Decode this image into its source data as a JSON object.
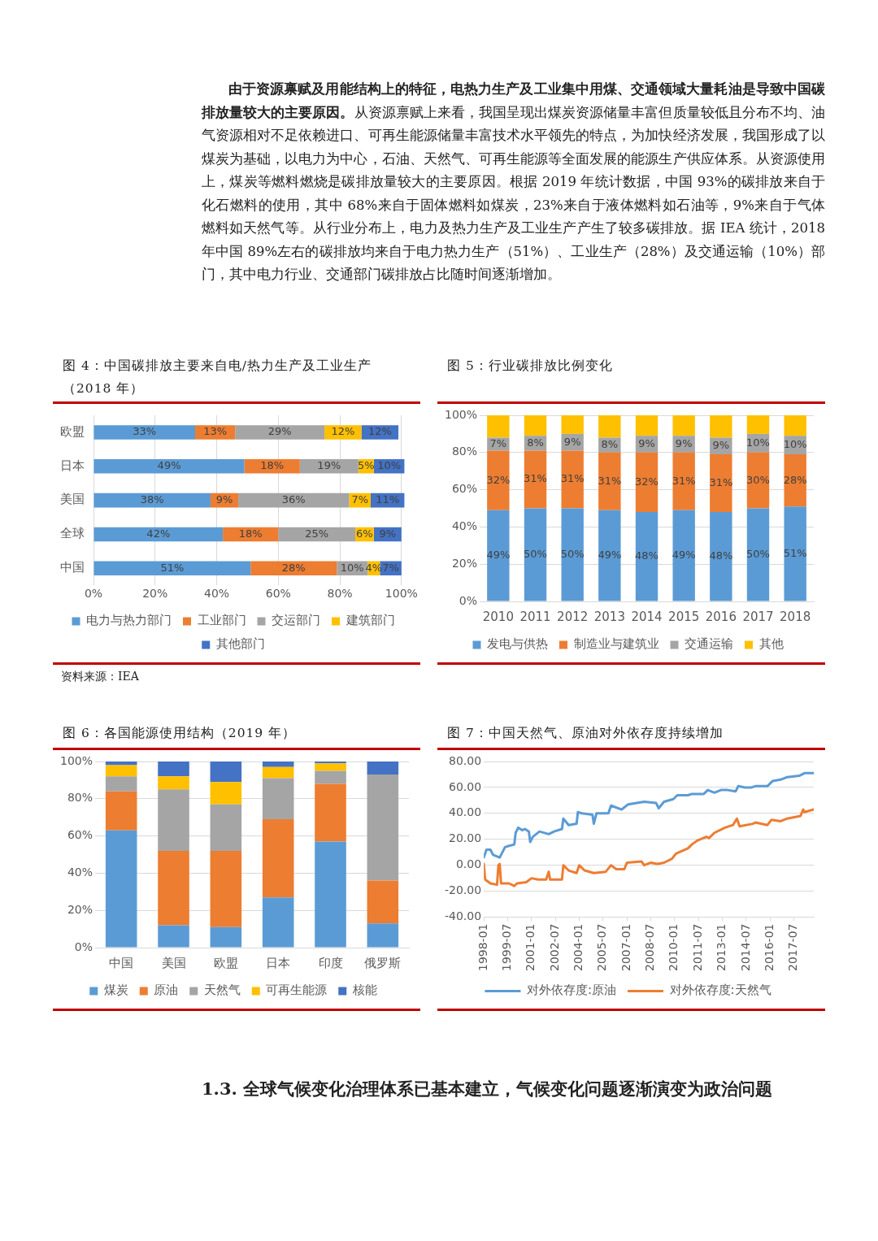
{
  "chart_data": [
    {
      "type": "other",
      "annotations": [
        "由于资源禀赋及用能结构上的特征，电热力生产及工业集中用煤、交通领域大量耗油是导致中国碳排放量较大的主要原因。",
        "从资源禀赋上来看，我国呈现出煤炭资源储量丰富但质量较低且分布不均、油气资源相对不足依赖进口、可再生能源储量丰富技术水平领先的特点，为加快经济发展，我国形成了以煤炭为基础，以电力为中心，石油、天然气、可再生能源等全面发展的能源生产供应体系。从资源使用上，煤炭等燃料燃烧是碳排放量较大的主要原因。根据 2019 年统计数据，中国 93%的碳排放来自于化石燃料的使用，其中 68%来自于固体燃料如煤炭，23%来自于液体燃料如石油等，9%来自于气体燃料如天然气等。从行业分布上，电力及热力生产及工业生产产生了较多碳排放。据 IEA 统计，2018 年中国 89%左右的碳排放均来自于电力热力生产（51%）、工业生产（28%）及交通运输（10%）部门，其中电力行业、交通部门碳排放占比随时间逐渐增加。"
      ]
    },
    {
      "type": "bar",
      "title": "图 4：中国碳排放主要来自电/热力生产及工业生产（2018 年）",
      "orientation": "horizontal",
      "stacked": true,
      "categories": [
        "欧盟",
        "日本",
        "美国",
        "全球",
        "中国"
      ],
      "series": [
        {
          "name": "电力与热力部门",
          "color": "#5b9bd5",
          "values": [
            33,
            49,
            38,
            42,
            51
          ],
          "value_labels": [
            "33%",
            "49%",
            "38%",
            "42%",
            "51%"
          ]
        },
        {
          "name": "工业部门",
          "color": "#ed7d31",
          "values": [
            13,
            18,
            9,
            18,
            28
          ],
          "value_labels": [
            "13%",
            "18%",
            "9%",
            "18%",
            "28%"
          ]
        },
        {
          "name": "交运部门",
          "color": "#a5a5a5",
          "values": [
            29,
            19,
            36,
            25,
            10
          ],
          "value_labels": [
            "29%",
            "19%",
            "36%",
            "25%",
            "10%"
          ]
        },
        {
          "name": "建筑部门",
          "color": "#ffc000",
          "values": [
            12,
            5,
            7,
            6,
            4
          ],
          "value_labels": [
            "12%",
            "5%",
            "7%",
            "6%",
            "4%"
          ]
        },
        {
          "name": "其他部门",
          "color": "#4472c4",
          "values": [
            12,
            10,
            11,
            9,
            7
          ],
          "value_labels": [
            "12%",
            "10%",
            "11%",
            "9%",
            "7%"
          ]
        }
      ],
      "xlim": [
        0,
        101
      ],
      "xticks": [
        {
          "value": 0,
          "label": "0%"
        },
        {
          "value": 20,
          "label": "20%"
        },
        {
          "value": 40,
          "label": "40%"
        },
        {
          "value": 60,
          "label": "60%"
        },
        {
          "value": 80,
          "label": "80%"
        },
        {
          "value": 100,
          "label": "100%"
        }
      ],
      "grid": "x",
      "legend": "bottom",
      "annotations": [
        "资料来源：IEA"
      ]
    },
    {
      "type": "bar",
      "title": "图 5：行业碳排放比例变化",
      "stacked": true,
      "categories": [
        "2010",
        "2011",
        "2012",
        "2013",
        "2014",
        "2015",
        "2016",
        "2017",
        "2018"
      ],
      "series": [
        {
          "name": "发电与供热",
          "color": "#5b9bd5",
          "values": [
            49,
            50,
            50,
            49,
            48,
            49,
            48,
            50,
            51
          ],
          "value_labels": [
            "49%",
            "50%",
            "50%",
            "49%",
            "48%",
            "49%",
            "48%",
            "50%",
            "51%"
          ]
        },
        {
          "name": "制造业与建筑业",
          "color": "#ed7d31",
          "values": [
            32,
            31,
            31,
            31,
            32,
            31,
            31,
            30,
            28
          ],
          "value_labels": [
            "32%",
            "31%",
            "31%",
            "31%",
            "32%",
            "31%",
            "31%",
            "30%",
            "28%"
          ]
        },
        {
          "name": "交通运输",
          "color": "#a5a5a5",
          "values": [
            7,
            8,
            9,
            8,
            9,
            9,
            9,
            10,
            10
          ],
          "value_labels": [
            "7%",
            "8%",
            "9%",
            "8%",
            "9%",
            "9%",
            "9%",
            "10%",
            "10%"
          ]
        },
        {
          "name": "其他",
          "color": "#ffc000",
          "values": [
            12,
            11,
            10,
            12,
            11,
            11,
            12,
            10,
            11
          ]
        }
      ],
      "ylim": [
        0,
        100
      ],
      "yticks": [
        {
          "value": 0,
          "label": "0%"
        },
        {
          "value": 20,
          "label": "20%"
        },
        {
          "value": 40,
          "label": "40%"
        },
        {
          "value": 60,
          "label": "60%"
        },
        {
          "value": 80,
          "label": "80%"
        },
        {
          "value": 100,
          "label": "100%"
        }
      ],
      "grid": "y",
      "legend": "bottom"
    },
    {
      "type": "bar",
      "title": "图 6：各国能源使用结构（2019 年）",
      "stacked": true,
      "categories": [
        "中国",
        "美国",
        "欧盟",
        "日本",
        "印度",
        "俄罗斯"
      ],
      "series": [
        {
          "name": "煤炭",
          "color": "#5b9bd5",
          "values": [
            63,
            12,
            11,
            27,
            57,
            13
          ]
        },
        {
          "name": "原油",
          "color": "#ed7d31",
          "values": [
            21,
            40,
            41,
            42,
            31,
            23
          ]
        },
        {
          "name": "天然气",
          "color": "#a5a5a5",
          "values": [
            8,
            33,
            25,
            22,
            7,
            57
          ]
        },
        {
          "name": "可再生能源",
          "color": "#ffc000",
          "values": [
            6,
            7,
            12,
            6,
            4,
            0
          ]
        },
        {
          "name": "核能",
          "color": "#4472c4",
          "values": [
            2,
            8,
            11,
            3,
            1,
            7
          ]
        }
      ],
      "ylim": [
        0,
        100
      ],
      "yticks": [
        {
          "value": 0,
          "label": "0%"
        },
        {
          "value": 20,
          "label": "20%"
        },
        {
          "value": 40,
          "label": "40%"
        },
        {
          "value": 60,
          "label": "60%"
        },
        {
          "value": 80,
          "label": "80%"
        },
        {
          "value": 100,
          "label": "100%"
        }
      ],
      "grid": "y",
      "legend": "bottom"
    },
    {
      "type": "line",
      "title": "图 7：中国天然气、原油对外依存度持续增加",
      "marker": "none",
      "series": [
        {
          "name": "对外依存度:原油",
          "color": "#5b9bd5",
          "x": [
            "1998-01",
            "1998-03",
            "1998-06",
            "1998-08",
            "1999-01",
            "1999-05",
            "1999-08",
            "1999-12",
            "2000-01",
            "2000-03",
            "2000-06",
            "2000-08",
            "2000-11",
            "2000-12",
            "2001-02",
            "2001-07",
            "2002-02",
            "2002-06",
            "2002-12",
            "2003-01",
            "2003-05",
            "2003-11",
            "2003-12",
            "2004-03",
            "2004-11",
            "2004-12",
            "2005-02",
            "2005-11",
            "2006-01",
            "2006-09",
            "2007-02",
            "2008-02",
            "2008-11",
            "2009-01",
            "2009-05",
            "2009-12",
            "2010-03",
            "2010-11",
            "2011-02",
            "2011-11",
            "2012-02",
            "2012-07",
            "2012-12",
            "2013-05",
            "2013-11",
            "2014-01",
            "2014-06",
            "2014-11",
            "2015-02",
            "2015-11",
            "2016-03",
            "2016-09",
            "2017-02",
            "2017-11",
            "2018-03",
            "2018-10"
          ],
          "values": [
            6,
            12,
            12,
            8,
            6,
            14,
            15,
            16,
            25,
            29,
            27,
            28,
            26,
            18,
            22,
            26,
            24,
            26,
            28,
            36,
            31,
            32,
            41,
            40,
            39,
            32,
            40,
            40,
            46,
            43,
            47,
            49,
            48,
            44,
            49,
            51,
            54,
            54,
            55,
            55,
            58,
            56,
            58,
            58,
            57,
            61,
            60,
            60,
            61,
            61,
            65,
            66,
            68,
            69,
            71,
            71
          ]
        },
        {
          "name": "对外依存度:天然气",
          "color": "#ed7d31",
          "x": [
            "1998-01",
            "1998-02",
            "1998-06",
            "1998-11",
            "1998-12",
            "1999-01",
            "1999-02",
            "1999-08",
            "1999-12",
            "2000-02",
            "2000-09",
            "2001-01",
            "2001-06",
            "2001-12",
            "2002-02",
            "2002-03",
            "2002-12",
            "2003-01",
            "2003-05",
            "2003-11",
            "2004-01",
            "2004-05",
            "2004-12",
            "2005-09",
            "2006-01",
            "2006-05",
            "2006-11",
            "2007-01",
            "2007-12",
            "2008-02",
            "2008-07",
            "2008-12",
            "2009-05",
            "2009-11",
            "2010-02",
            "2010-11",
            "2011-02",
            "2011-06",
            "2012-01",
            "2012-03",
            "2012-07",
            "2013-03",
            "2013-09",
            "2013-12",
            "2014-02",
            "2014-12",
            "2015-02",
            "2015-11",
            "2016-02",
            "2016-09",
            "2017-02",
            "2017-12",
            "2018-02",
            "2018-03",
            "2018-10"
          ],
          "values": [
            1,
            -11,
            -14,
            -15,
            0,
            1,
            -14,
            -14,
            -16,
            -14,
            -13,
            -10,
            -11,
            -11,
            -5,
            -11,
            -11,
            0,
            -4,
            -6,
            0,
            -4,
            -6,
            -5,
            0,
            -3,
            -3,
            2,
            3,
            0,
            2,
            1,
            2,
            5,
            9,
            13,
            16,
            19,
            22,
            21,
            25,
            29,
            31,
            36,
            30,
            32,
            33,
            31,
            35,
            34,
            36,
            38,
            43,
            41,
            43
          ]
        }
      ],
      "xlim": [
        "1998-01",
        "2018-10"
      ],
      "xticks": [
        "1998-01",
        "1999-07",
        "2001-01",
        "2002-07",
        "2004-01",
        "2005-07",
        "2007-01",
        "2008-07",
        "2010-01",
        "2011-07",
        "2013-01",
        "2014-07",
        "2016-01",
        "2017-07"
      ],
      "ylim": [
        -40,
        80
      ],
      "yticks": [
        {
          "value": -40,
          "label": "-40.00"
        },
        {
          "value": -20,
          "label": "-20.00"
        },
        {
          "value": 0,
          "label": "0.00"
        },
        {
          "value": 20,
          "label": "20.00"
        },
        {
          "value": 40,
          "label": "40.00"
        },
        {
          "value": 60,
          "label": "60.00"
        },
        {
          "value": 80,
          "label": "80.00"
        }
      ],
      "grid": "y",
      "legend": "bottom"
    },
    {
      "type": "other",
      "title": "1.3. 全球气候变化治理体系已基本建立，气候变化问题逐渐演变为政治问题"
    }
  ]
}
